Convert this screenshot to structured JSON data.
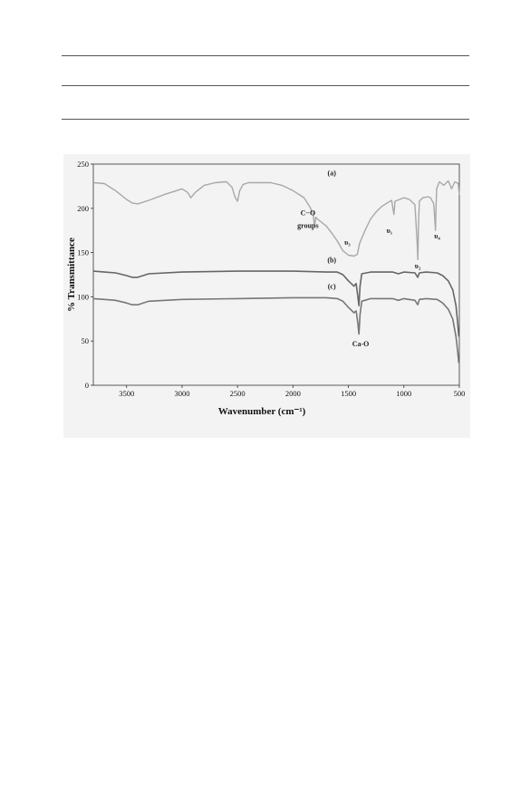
{
  "chart_data": {
    "type": "line",
    "title": "",
    "xlabel": "Wavenumber (cm⁻¹)",
    "ylabel": "% Transmittance",
    "xlim": [
      3800,
      500
    ],
    "ylim": [
      0,
      250
    ],
    "x_ticks": [
      "3500",
      "3000",
      "2500",
      "2000",
      "1500",
      "1000",
      "500"
    ],
    "y_ticks": [
      "0",
      "50",
      "100",
      "150",
      "200",
      "250"
    ],
    "grid": false,
    "legend": "none",
    "series": [
      {
        "name": "(a)",
        "color": "#a8a8a8",
        "points": [
          [
            3800,
            229
          ],
          [
            3700,
            228
          ],
          [
            3600,
            220
          ],
          [
            3500,
            210
          ],
          [
            3450,
            206
          ],
          [
            3400,
            205
          ],
          [
            3300,
            209
          ],
          [
            3150,
            216
          ],
          [
            3050,
            220
          ],
          [
            3000,
            222
          ],
          [
            2950,
            218
          ],
          [
            2920,
            212
          ],
          [
            2880,
            218
          ],
          [
            2800,
            226
          ],
          [
            2700,
            229
          ],
          [
            2600,
            230
          ],
          [
            2550,
            224
          ],
          [
            2520,
            212
          ],
          [
            2500,
            208
          ],
          [
            2480,
            220
          ],
          [
            2450,
            227
          ],
          [
            2400,
            229
          ],
          [
            2200,
            229
          ],
          [
            2100,
            226
          ],
          [
            2000,
            220
          ],
          [
            1900,
            212
          ],
          [
            1850,
            202
          ],
          [
            1820,
            195
          ],
          [
            1805,
            180
          ],
          [
            1795,
            190
          ],
          [
            1780,
            188
          ],
          [
            1700,
            180
          ],
          [
            1650,
            172
          ],
          [
            1600,
            163
          ],
          [
            1550,
            152
          ],
          [
            1500,
            147
          ],
          [
            1450,
            146
          ],
          [
            1420,
            148
          ],
          [
            1400,
            160
          ],
          [
            1350,
            175
          ],
          [
            1300,
            188
          ],
          [
            1250,
            196
          ],
          [
            1200,
            202
          ],
          [
            1150,
            206
          ],
          [
            1110,
            209
          ],
          [
            1090,
            193
          ],
          [
            1080,
            208
          ],
          [
            1000,
            212
          ],
          [
            950,
            210
          ],
          [
            900,
            204
          ],
          [
            880,
            160
          ],
          [
            874,
            142
          ],
          [
            868,
            180
          ],
          [
            860,
            208
          ],
          [
            830,
            212
          ],
          [
            780,
            213
          ],
          [
            760,
            212
          ],
          [
            730,
            205
          ],
          [
            715,
            175
          ],
          [
            712,
            190
          ],
          [
            705,
            222
          ],
          [
            680,
            230
          ],
          [
            640,
            226
          ],
          [
            600,
            231
          ],
          [
            570,
            222
          ],
          [
            540,
            230
          ],
          [
            510,
            228
          ],
          [
            500,
            215
          ]
        ]
      },
      {
        "name": "(b)",
        "color": "#666666",
        "points": [
          [
            3800,
            129
          ],
          [
            3700,
            128
          ],
          [
            3600,
            127
          ],
          [
            3500,
            124
          ],
          [
            3450,
            122
          ],
          [
            3400,
            122
          ],
          [
            3300,
            126
          ],
          [
            3000,
            128
          ],
          [
            2500,
            129
          ],
          [
            2000,
            129
          ],
          [
            1700,
            128
          ],
          [
            1600,
            128
          ],
          [
            1550,
            125
          ],
          [
            1500,
            118
          ],
          [
            1450,
            112
          ],
          [
            1430,
            115
          ],
          [
            1415,
            100
          ],
          [
            1405,
            90
          ],
          [
            1395,
            112
          ],
          [
            1380,
            126
          ],
          [
            1300,
            128
          ],
          [
            1100,
            128
          ],
          [
            1050,
            126
          ],
          [
            1000,
            128
          ],
          [
            900,
            127
          ],
          [
            875,
            122
          ],
          [
            860,
            127
          ],
          [
            800,
            128
          ],
          [
            700,
            127
          ],
          [
            650,
            124
          ],
          [
            600,
            118
          ],
          [
            560,
            108
          ],
          [
            530,
            90
          ],
          [
            515,
            70
          ],
          [
            505,
            55
          ]
        ]
      },
      {
        "name": "(c)",
        "color": "#777777",
        "points": [
          [
            3800,
            98
          ],
          [
            3700,
            97
          ],
          [
            3600,
            96
          ],
          [
            3500,
            93
          ],
          [
            3450,
            91
          ],
          [
            3400,
            91
          ],
          [
            3300,
            95
          ],
          [
            3000,
            97
          ],
          [
            2500,
            98
          ],
          [
            2000,
            99
          ],
          [
            1700,
            99
          ],
          [
            1600,
            98
          ],
          [
            1550,
            95
          ],
          [
            1500,
            88
          ],
          [
            1450,
            82
          ],
          [
            1430,
            84
          ],
          [
            1415,
            70
          ],
          [
            1405,
            58
          ],
          [
            1395,
            80
          ],
          [
            1380,
            95
          ],
          [
            1300,
            98
          ],
          [
            1100,
            98
          ],
          [
            1050,
            96
          ],
          [
            1000,
            98
          ],
          [
            900,
            96
          ],
          [
            875,
            91
          ],
          [
            860,
            97
          ],
          [
            800,
            98
          ],
          [
            700,
            97
          ],
          [
            650,
            93
          ],
          [
            600,
            86
          ],
          [
            560,
            75
          ],
          [
            530,
            55
          ],
          [
            515,
            38
          ],
          [
            505,
            25
          ]
        ]
      }
    ],
    "annotations": [
      {
        "text": "(a)",
        "x": 1650,
        "y": 237
      },
      {
        "text": "(b)",
        "x": 1650,
        "y": 139
      },
      {
        "text": "(c)",
        "x": 1650,
        "y": 109
      },
      {
        "text": "C−O",
        "x": 1865,
        "y": 192
      },
      {
        "text": "groups",
        "x": 1865,
        "y": 178
      },
      {
        "text": "υ₃",
        "x": 1510,
        "y": 159
      },
      {
        "text": "υ₁",
        "x": 1130,
        "y": 172
      },
      {
        "text": "υ₄",
        "x": 700,
        "y": 166
      },
      {
        "text": "υ₂",
        "x": 875,
        "y": 132
      },
      {
        "text": "Ca-O",
        "x": 1390,
        "y": 44
      }
    ]
  }
}
